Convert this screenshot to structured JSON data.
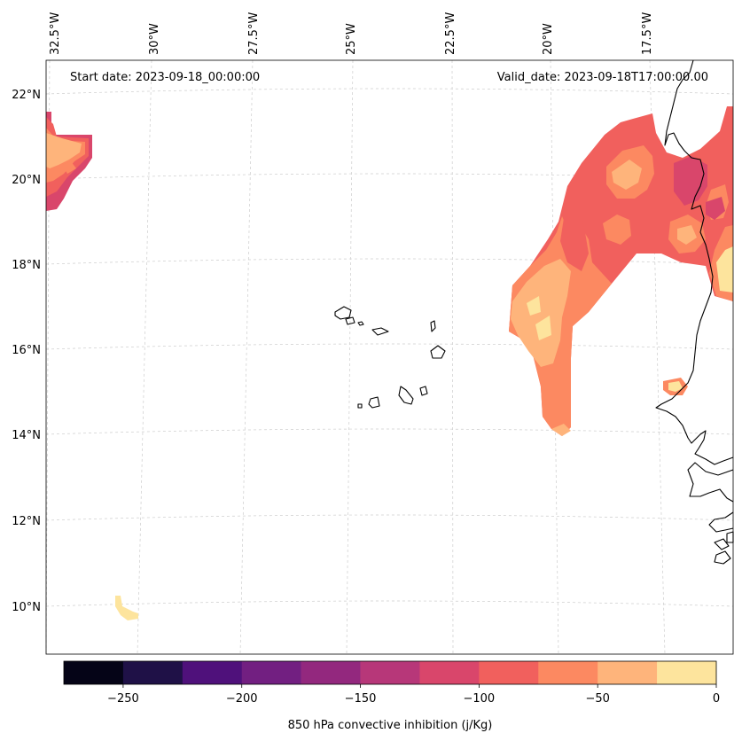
{
  "header": {
    "start_date": "Start date: 2023-09-18_00:00:00",
    "valid_date": "Valid_date: 2023-09-18T17:00:00.00"
  },
  "longitude_labels": [
    "32.5°W",
    "30°W",
    "27.5°W",
    "25°W",
    "22.5°W",
    "20°W",
    "17.5°W"
  ],
  "latitude_labels": [
    "22°N",
    "20°N",
    "18°N",
    "16°N",
    "14°N",
    "12°N",
    "10°N"
  ],
  "colorbar": {
    "title": "850 hPa convective inhibition (j/Kg)",
    "tick_labels": [
      "−250",
      "−200",
      "−150",
      "−100",
      "−50",
      "0"
    ],
    "levels": [
      -275,
      -250,
      -225,
      -200,
      -175,
      -150,
      -125,
      -100,
      -75,
      -50,
      -25,
      0
    ],
    "colors": [
      "#050417",
      "#1f1147",
      "#4f117b",
      "#721f81",
      "#93287e",
      "#b73779",
      "#d9466b",
      "#f1605d",
      "#fc8961",
      "#feb47b",
      "#fde49d"
    ]
  },
  "field": {
    "variable": "850 hPa convective inhibition",
    "units": "j/Kg",
    "regions": [
      {
        "name": "northwest-edge",
        "min_level": -125,
        "max_level": -25
      },
      {
        "name": "west-african-coast",
        "min_level": -150,
        "max_level": 0
      },
      {
        "name": "offshore-plume",
        "min_level": -100,
        "max_level": -25
      },
      {
        "name": "senegal-coast-patch",
        "min_level": -100,
        "max_level": -25
      },
      {
        "name": "southwest-patch",
        "min_level": -50,
        "max_level": -25
      }
    ]
  }
}
